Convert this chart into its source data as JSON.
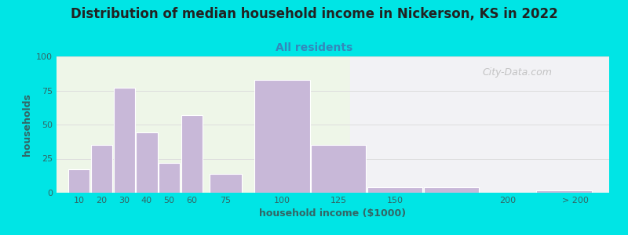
{
  "title": "Distribution of median household income in Nickerson, KS in 2022",
  "subtitle": "All residents",
  "xlabel": "household income ($1000)",
  "ylabel": "households",
  "bar_left_edges": [
    5,
    15,
    25,
    35,
    45,
    55,
    67.5,
    87.5,
    112.5,
    137.5,
    162.5,
    212.5
  ],
  "bar_widths": [
    10,
    10,
    10,
    10,
    10,
    10,
    15,
    25,
    25,
    25,
    25,
    25
  ],
  "bar_heights": [
    17,
    35,
    77,
    44,
    22,
    57,
    14,
    83,
    35,
    4,
    4,
    2
  ],
  "bar_color": "#c8b8d8",
  "bar_edge_color": "#ffffff",
  "ylim": [
    0,
    100
  ],
  "yticks": [
    0,
    25,
    50,
    75,
    100
  ],
  "xtick_positions": [
    10,
    20,
    30,
    40,
    50,
    60,
    75,
    100,
    125,
    150,
    200,
    230
  ],
  "xtick_labels": [
    "10",
    "20",
    "30",
    "40",
    "50",
    "60",
    "75",
    "100",
    "125",
    "150",
    "200",
    "> 200"
  ],
  "xlim": [
    0,
    245
  ],
  "background_outer": "#00e5e5",
  "background_plot_left": "#eef6e8",
  "background_plot_right": "#f2f2f5",
  "green_boundary": 130,
  "title_color": "#222222",
  "subtitle_color": "#3388bb",
  "axis_label_color": "#336666",
  "tick_label_color": "#336666",
  "grid_color": "#dddddd",
  "watermark_text": "City-Data.com",
  "title_fontsize": 12,
  "subtitle_fontsize": 10,
  "axis_label_fontsize": 9,
  "tick_label_fontsize": 8
}
